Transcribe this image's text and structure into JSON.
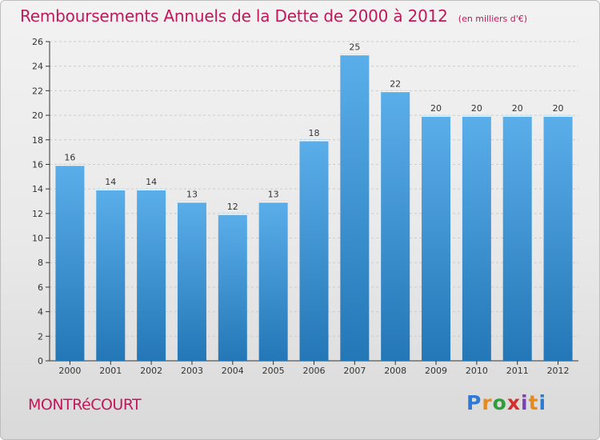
{
  "colors": {
    "title": "#c2185b",
    "bar_top": "#5aaeea",
    "bar_bottom": "#2477b6",
    "axis": "#333333",
    "grid": "#cccccc"
  },
  "header": {
    "title": "Remboursements Annuels de la Dette de 2000 à 2012",
    "unit": "(en milliers d'€)"
  },
  "footer": {
    "commune": "MONTRéCOURT",
    "brand": "Proxiti"
  },
  "chart_data": {
    "type": "bar",
    "title": "Remboursements Annuels de la Dette de 2000 à 2012",
    "xlabel": "",
    "ylabel": "",
    "categories": [
      "2000",
      "2001",
      "2002",
      "2003",
      "2004",
      "2005",
      "2006",
      "2007",
      "2008",
      "2009",
      "2010",
      "2011",
      "2012"
    ],
    "values": [
      16,
      14,
      14,
      13,
      12,
      13,
      18,
      25,
      22,
      20,
      20,
      20,
      20
    ],
    "ylim": [
      0,
      26
    ],
    "yticks": [
      0,
      2,
      4,
      6,
      8,
      10,
      12,
      14,
      16,
      18,
      20,
      22,
      24,
      26
    ],
    "grid": true
  }
}
